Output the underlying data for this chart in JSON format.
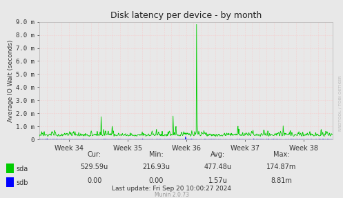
{
  "title": "Disk latency per device - by month",
  "ylabel": "Average IO Wait (seconds)",
  "xlabel_ticks": [
    "Week 34",
    "Week 35",
    "Week 36",
    "Week 37",
    "Week 38"
  ],
  "ytick_labels": [
    "0",
    "1.0 m",
    "2.0 m",
    "3.0 m",
    "4.0 m",
    "5.0 m",
    "6.0 m",
    "7.0 m",
    "8.0 m",
    "9.0 m"
  ],
  "ylim": [
    0,
    0.009
  ],
  "background_color": "#e8e8e8",
  "plot_bg_color": "#e8e8e8",
  "sda_color": "#00cc00",
  "sdb_color": "#0000ff",
  "footer_text": "Munin 2.0.73",
  "last_update": "Last update: Fri Sep 20 10:00:27 2024",
  "stats_cur_sda": "529.59u",
  "stats_min_sda": "216.93u",
  "stats_avg_sda": "477.48u",
  "stats_max_sda": "174.87m",
  "stats_cur_sdb": "0.00",
  "stats_min_sdb": "0.00",
  "stats_avg_sdb": "1.57u",
  "stats_max_sdb": "8.81m",
  "watermark": "RRDTOOL / TOBI OETIKER",
  "title_color": "#222222",
  "axis_color": "#333333",
  "n_points": 800
}
